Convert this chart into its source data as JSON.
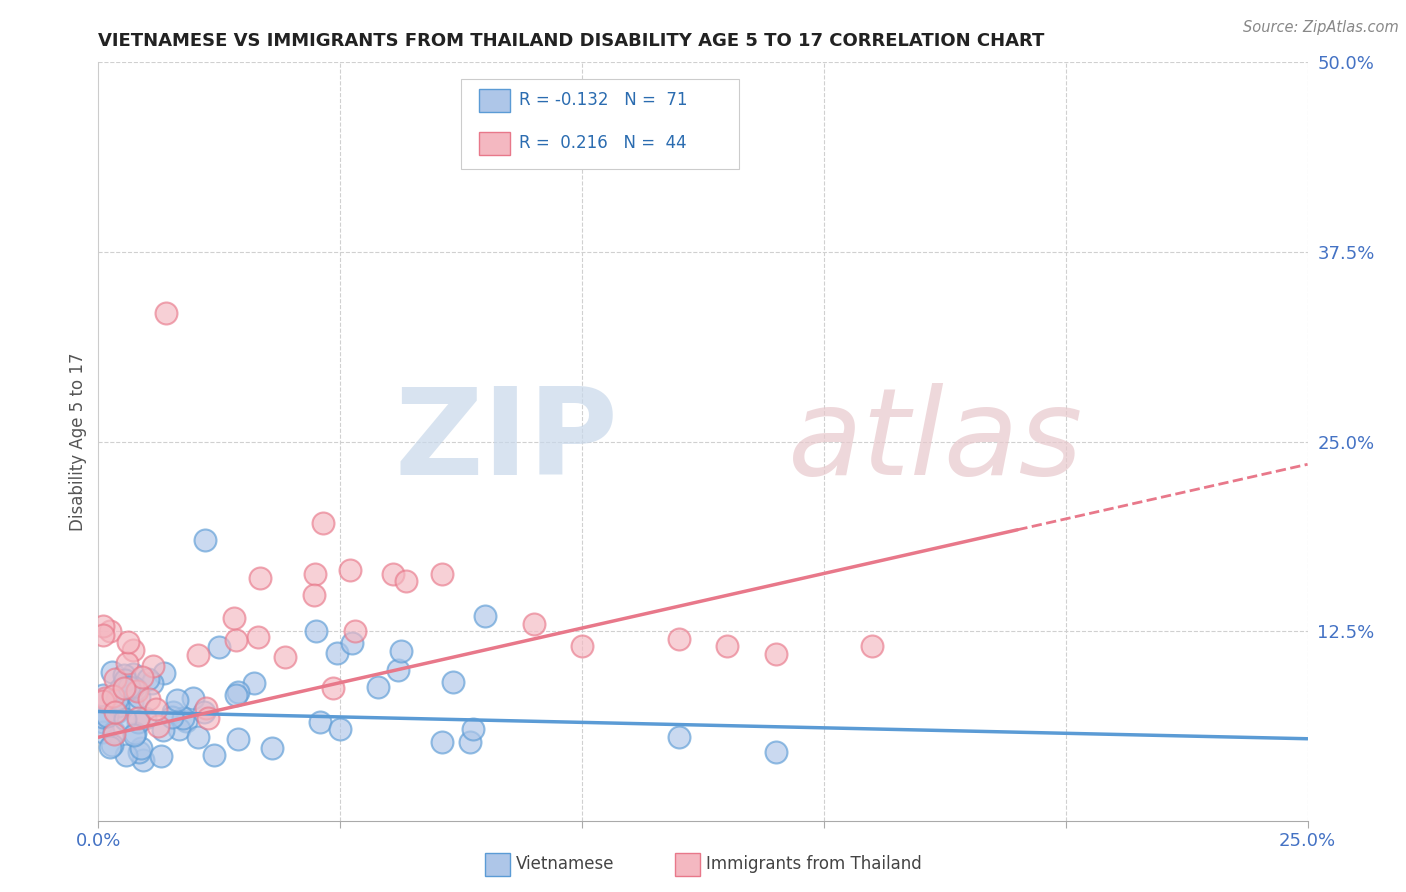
{
  "title": "VIETNAMESE VS IMMIGRANTS FROM THAILAND DISABILITY AGE 5 TO 17 CORRELATION CHART",
  "source": "Source: ZipAtlas.com",
  "ylabel": "Disability Age 5 to 17",
  "xlim": [
    0.0,
    0.25
  ],
  "ylim": [
    0.0,
    0.5
  ],
  "blue_color": "#5b9bd5",
  "pink_color": "#e8788a",
  "blue_fill": "#aec6e8",
  "pink_fill": "#f4b8c1",
  "background_color": "#ffffff",
  "grid_color": "#d0d0d0",
  "viet_intercept": 0.072,
  "viet_slope": -0.072,
  "thai_intercept": 0.055,
  "thai_slope": 0.72
}
